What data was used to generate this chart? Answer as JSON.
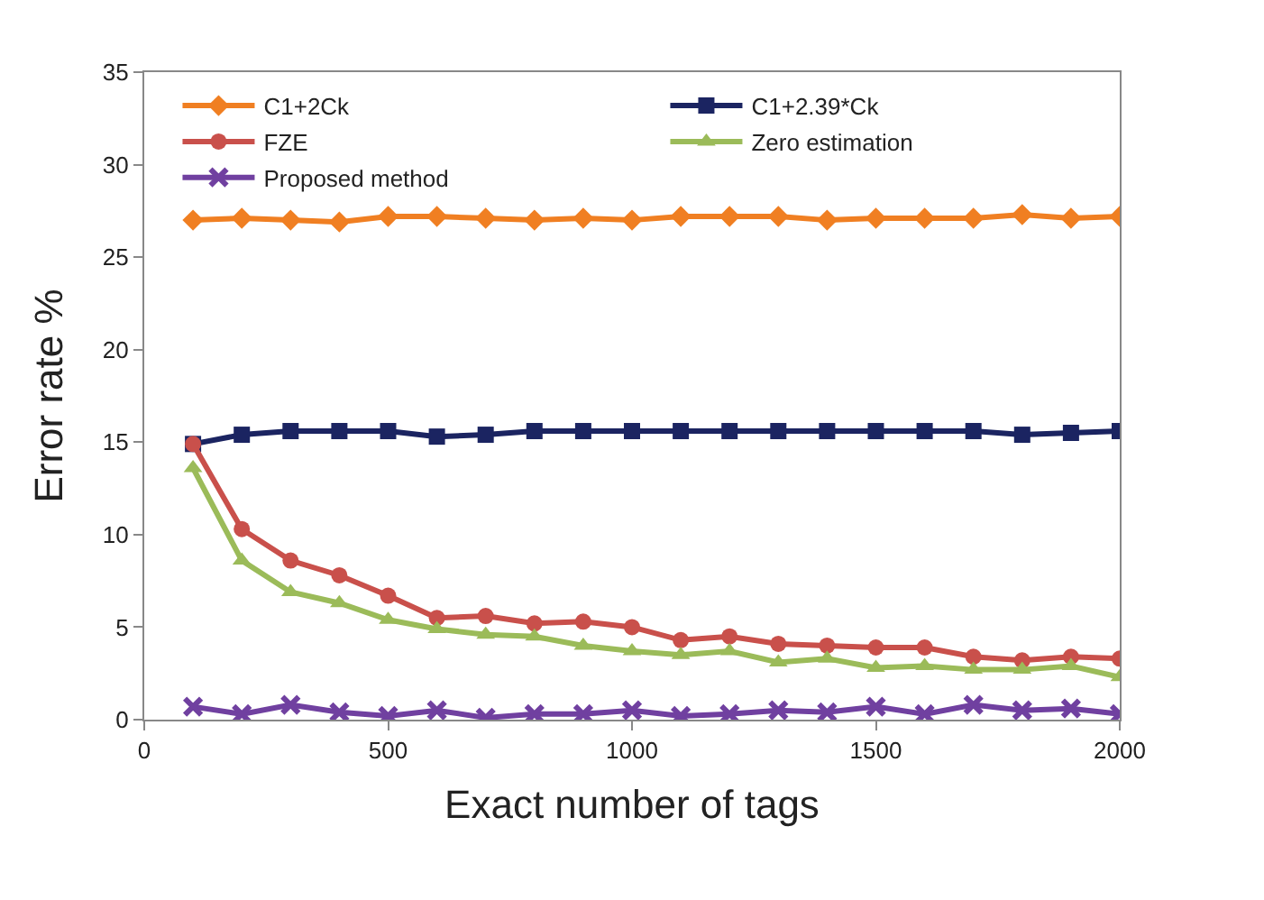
{
  "chart_data": {
    "type": "line",
    "xlabel": "Exact number of tags",
    "ylabel": "Error rate %",
    "x": [
      100,
      200,
      300,
      400,
      500,
      600,
      700,
      800,
      900,
      1000,
      1100,
      1200,
      1300,
      1400,
      1500,
      1600,
      1700,
      1800,
      1900,
      2000
    ],
    "xlim": [
      0,
      2000
    ],
    "xticks": [
      0,
      500,
      1000,
      1500,
      2000
    ],
    "ylim": [
      0,
      35
    ],
    "yticks": [
      0,
      5,
      10,
      15,
      20,
      25,
      30,
      35
    ],
    "legend": "top",
    "line_style": "solid",
    "series": [
      {
        "name": "C1+2Ck",
        "color": "#f07f22",
        "marker": "diamond",
        "values": [
          27.0,
          27.1,
          27.0,
          26.9,
          27.2,
          27.2,
          27.1,
          27.0,
          27.1,
          27.0,
          27.2,
          27.2,
          27.2,
          27.0,
          27.1,
          27.1,
          27.1,
          27.3,
          27.1,
          27.2
        ]
      },
      {
        "name": "C1+2.39*Ck",
        "color": "#1b2461",
        "marker": "square",
        "values": [
          14.9,
          15.4,
          15.6,
          15.6,
          15.6,
          15.3,
          15.4,
          15.6,
          15.6,
          15.6,
          15.6,
          15.6,
          15.6,
          15.6,
          15.6,
          15.6,
          15.6,
          15.4,
          15.5,
          15.6
        ]
      },
      {
        "name": "FZE",
        "color": "#c9504b",
        "marker": "circle",
        "values": [
          14.9,
          10.3,
          8.6,
          7.8,
          6.7,
          5.5,
          5.6,
          5.2,
          5.3,
          5.0,
          4.3,
          4.5,
          4.1,
          4.0,
          3.9,
          3.9,
          3.4,
          3.2,
          3.4,
          3.3
        ]
      },
      {
        "name": "Zero estimation",
        "color": "#9bbb59",
        "marker": "triangle",
        "values": [
          13.6,
          8.6,
          6.9,
          6.3,
          5.4,
          4.9,
          4.6,
          4.5,
          4.0,
          3.7,
          3.5,
          3.7,
          3.1,
          3.3,
          2.8,
          2.9,
          2.7,
          2.7,
          2.9,
          2.3
        ]
      },
      {
        "name": "Proposed method",
        "color": "#7040a0",
        "marker": "cross",
        "values": [
          0.7,
          0.3,
          0.8,
          0.4,
          0.2,
          0.5,
          0.1,
          0.3,
          0.3,
          0.5,
          0.2,
          0.3,
          0.5,
          0.4,
          0.7,
          0.3,
          0.8,
          0.5,
          0.6,
          0.3
        ]
      }
    ]
  }
}
